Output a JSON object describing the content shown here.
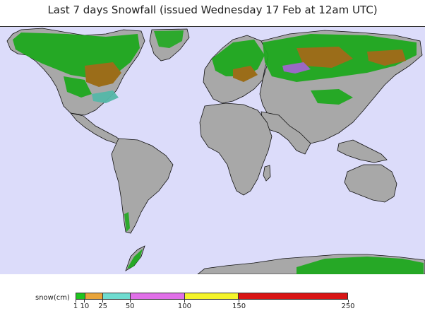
{
  "title": "Last 7 days Snowfall (issued Wednesday 17 Feb at 12am UTC)",
  "legend": {
    "label": "snow(cm)",
    "segments": [
      {
        "from": 1,
        "to": 10,
        "color": "#1fc41f"
      },
      {
        "from": 10,
        "to": 25,
        "color": "#e8a43a"
      },
      {
        "from": 25,
        "to": 50,
        "color": "#6fdcd0"
      },
      {
        "from": 50,
        "to": 100,
        "color": "#e070e8"
      },
      {
        "from": 100,
        "to": 150,
        "color": "#f4f42a"
      },
      {
        "from": 150,
        "to": 250,
        "color": "#d81414"
      }
    ],
    "ticks": [
      "1",
      "10",
      "25",
      "50",
      "100",
      "150",
      "250"
    ]
  },
  "colors": {
    "ocean": "#dcdcfa",
    "land": "#a8a8a8",
    "coast": "#111111",
    "snow_light": "#1fa81f",
    "snow_brown": "#9b6a12",
    "snow_teal": "#55b8a8",
    "snow_purple": "#9a66c8"
  }
}
